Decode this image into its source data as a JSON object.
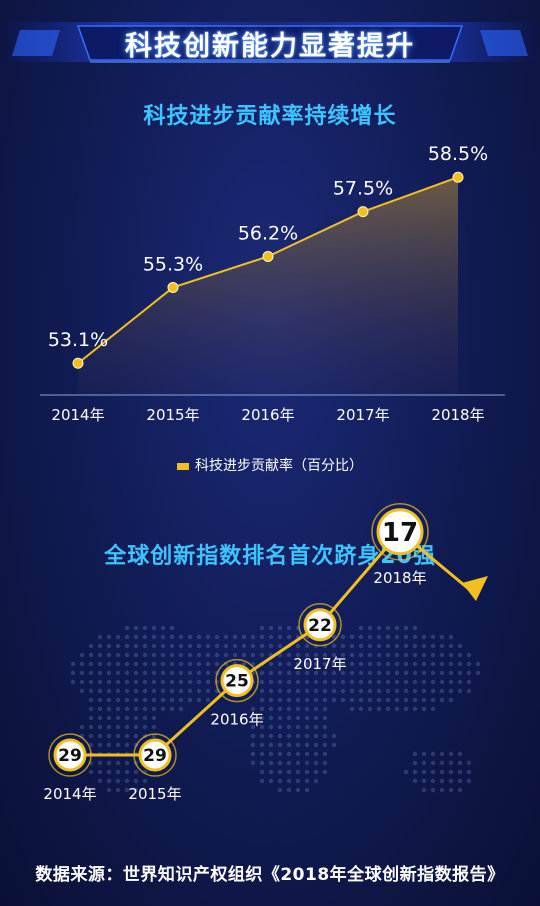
{
  "banner": {
    "title": "科技创新能力显著提升"
  },
  "section1": {
    "title": "科技进步贡献率持续增长"
  },
  "section2": {
    "title": "全球创新指数排名首次跻身20强"
  },
  "legend": {
    "label": "科技进步贡献率（百分比）"
  },
  "source": {
    "text": "数据来源：世界知识产权组织《2018年全球创新指数报告》"
  },
  "colors": {
    "accent": "#f0c020",
    "title_cyan": "#3ec5ff",
    "background": "#121d58"
  },
  "chart_data": [
    {
      "type": "area",
      "categories": [
        "2014年",
        "2015年",
        "2016年",
        "2017年",
        "2018年"
      ],
      "series": [
        {
          "name": "科技进步贡献率（百分比）",
          "values": [
            53.1,
            55.3,
            56.2,
            57.5,
            58.5
          ],
          "labels": [
            "53.1%",
            "55.3%",
            "56.2%",
            "57.5%",
            "58.5%"
          ]
        }
      ],
      "title": "科技进步贡献率持续增长",
      "ylim": [
        50,
        59
      ],
      "grid": false,
      "legend_position": "bottom"
    },
    {
      "type": "line",
      "categories": [
        "2014年",
        "2015年",
        "2016年",
        "2017年",
        "2018年"
      ],
      "series": [
        {
          "values": [
            29,
            29,
            25,
            22,
            17
          ]
        }
      ],
      "title": "全球创新指数排名首次跻身20强",
      "grid": false
    }
  ]
}
